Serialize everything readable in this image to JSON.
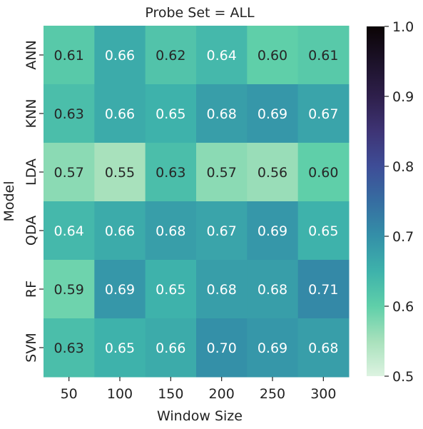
{
  "chart_data": {
    "type": "heatmap",
    "title": "Probe Set = ALL",
    "xlabel": "Window Size",
    "ylabel": "Model",
    "x_categories": [
      "50",
      "100",
      "150",
      "200",
      "250",
      "300"
    ],
    "y_categories": [
      "ANN",
      "KNN",
      "LDA",
      "QDA",
      "RF",
      "SVM"
    ],
    "values": [
      [
        0.61,
        0.66,
        0.62,
        0.64,
        0.6,
        0.61
      ],
      [
        0.63,
        0.66,
        0.65,
        0.68,
        0.69,
        0.67
      ],
      [
        0.57,
        0.55,
        0.63,
        0.57,
        0.56,
        0.6
      ],
      [
        0.64,
        0.66,
        0.68,
        0.67,
        0.69,
        0.65
      ],
      [
        0.59,
        0.69,
        0.65,
        0.68,
        0.68,
        0.71
      ],
      [
        0.63,
        0.65,
        0.66,
        0.7,
        0.69,
        0.68
      ]
    ],
    "cell_labels": [
      [
        "0.61",
        "0.66",
        "0.62",
        "0.64",
        "0.60",
        "0.61"
      ],
      [
        "0.63",
        "0.66",
        "0.65",
        "0.68",
        "0.69",
        "0.67"
      ],
      [
        "0.57",
        "0.55",
        "0.63",
        "0.57",
        "0.56",
        "0.60"
      ],
      [
        "0.64",
        "0.66",
        "0.68",
        "0.67",
        "0.69",
        "0.65"
      ],
      [
        "0.59",
        "0.69",
        "0.65",
        "0.68",
        "0.68",
        "0.71"
      ],
      [
        "0.63",
        "0.65",
        "0.66",
        "0.70",
        "0.69",
        "0.68"
      ]
    ],
    "colorbar": {
      "min": 0.5,
      "max": 1.0,
      "ticks": [
        0.5,
        0.6,
        0.7,
        0.8,
        0.9,
        1.0
      ],
      "tick_labels": [
        "0.5",
        "0.6",
        "0.7",
        "0.8",
        "0.9",
        "1.0"
      ],
      "colormap": "mako_r",
      "color_stops": [
        {
          "v": 0.5,
          "color": "#ddf3e1"
        },
        {
          "v": 0.55,
          "color": "#a8e1bc"
        },
        {
          "v": 0.6,
          "color": "#5fcfa9"
        },
        {
          "v": 0.65,
          "color": "#3eb2ab"
        },
        {
          "v": 0.7,
          "color": "#3490a8"
        },
        {
          "v": 0.75,
          "color": "#366da1"
        },
        {
          "v": 0.8,
          "color": "#3e4d97"
        },
        {
          "v": 0.85,
          "color": "#3e3475"
        },
        {
          "v": 0.9,
          "color": "#2e1f4b"
        },
        {
          "v": 0.95,
          "color": "#1c1229"
        },
        {
          "v": 1.0,
          "color": "#0b0405"
        }
      ]
    },
    "annotation_colors": {
      "dark": "#262626",
      "light": "#ffffff"
    },
    "annotation_threshold": 0.64,
    "grid": false,
    "legend": "colorbar right"
  }
}
